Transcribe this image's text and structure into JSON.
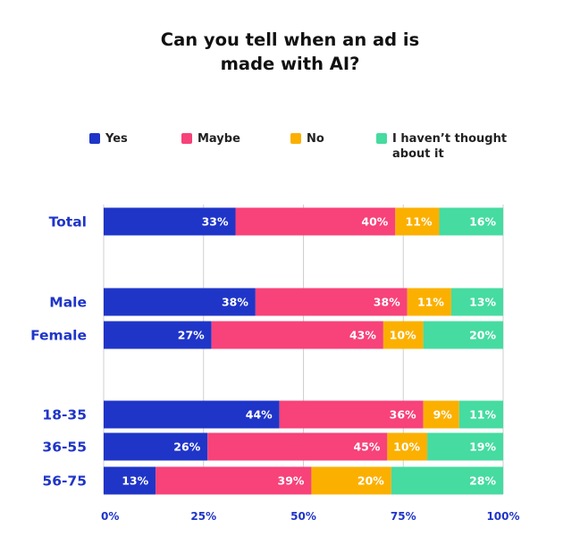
{
  "chart_data": {
    "type": "bar",
    "orientation": "horizontal",
    "stacked": true,
    "title": [
      "Can you tell when an ad is",
      "made with AI?"
    ],
    "categories": [
      "Total",
      "Male",
      "Female",
      "18-35",
      "36-55",
      "56-75"
    ],
    "series": [
      {
        "name": "Yes",
        "color": "#1f35c8",
        "values": [
          33,
          38,
          27,
          44,
          26,
          13
        ]
      },
      {
        "name": "Maybe",
        "color": "#f7427a",
        "values": [
          40,
          38,
          43,
          36,
          45,
          39
        ]
      },
      {
        "name": "No",
        "color": "#fbb000",
        "values": [
          11,
          11,
          10,
          9,
          10,
          20
        ]
      },
      {
        "name": "I haven’t thought about it",
        "color": "#46dba0",
        "values": [
          16,
          13,
          20,
          11,
          19,
          28
        ]
      }
    ],
    "value_labels": [
      [
        "33%",
        "40%",
        "11%",
        "16%"
      ],
      [
        "38%",
        "38%",
        "11%",
        "13%"
      ],
      [
        "27%",
        "43%",
        "10%",
        "20%"
      ],
      [
        "44%",
        "36%",
        "9%",
        "11%"
      ],
      [
        "26%",
        "45%",
        "10%",
        "19%"
      ],
      [
        "13%",
        "39%",
        "20%",
        "28%"
      ]
    ],
    "x_ticks": [
      "0%",
      "25%",
      "50%",
      "75%",
      "100%"
    ],
    "xlim": [
      0,
      100
    ],
    "grid": true,
    "legend_position": "top",
    "category_label_color": "#1f35c8"
  },
  "legend": {
    "yes": "Yes",
    "maybe": "Maybe",
    "no": "No",
    "havent_line1": "I haven’t thought",
    "havent_line2": "about it"
  }
}
